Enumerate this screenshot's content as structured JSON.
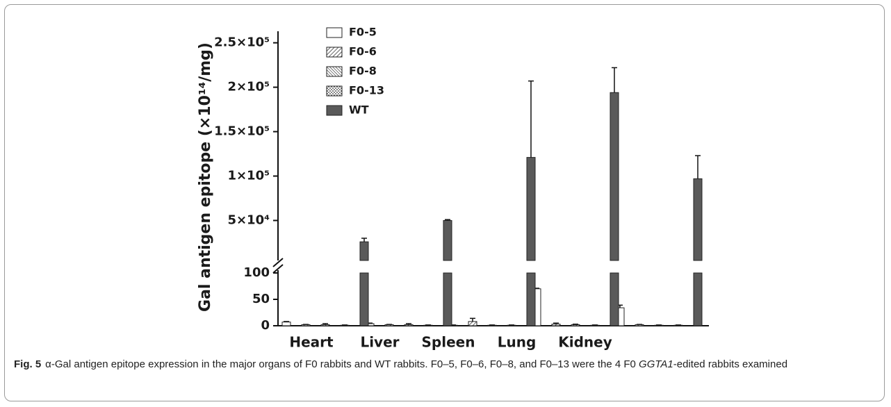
{
  "chart_data": {
    "type": "bar",
    "y_label": "Gal antigen epitope (×10¹⁴/mg)",
    "categories": [
      "Heart",
      "Liver",
      "Spleen",
      "Lung",
      "Kidney"
    ],
    "ylim_lower": [
      0,
      100
    ],
    "yticks_lower": [
      0,
      50,
      100
    ],
    "ylim_upper": [
      5000,
      263000
    ],
    "yticks_upper": [
      {
        "value": 50000,
        "label": "5×10⁴"
      },
      {
        "value": 100000,
        "label": "1×10⁵"
      },
      {
        "value": 150000,
        "label": "1.5×10⁵"
      },
      {
        "value": 200000,
        "label": "2×10⁵"
      },
      {
        "value": 250000,
        "label": "2.5×10⁵"
      }
    ],
    "series": [
      {
        "name": "F0-5",
        "fill": "white",
        "values": [
          7,
          4,
          1,
          70,
          34
        ],
        "errors": [
          1,
          1,
          0.5,
          1,
          5
        ]
      },
      {
        "name": "F0-6",
        "fill": "hatch-fwd",
        "values": [
          2,
          2,
          8,
          3,
          2
        ],
        "errors": [
          0.5,
          0.5,
          6,
          2,
          0.5
        ]
      },
      {
        "name": "F0-8",
        "fill": "hatch-back",
        "values": [
          2,
          2,
          1,
          2,
          1
        ],
        "errors": [
          2,
          2,
          0.5,
          1,
          0.5
        ]
      },
      {
        "name": "F0-13",
        "fill": "dots",
        "values": [
          1,
          1,
          1,
          1,
          1
        ],
        "errors": [
          0.5,
          0.5,
          0.5,
          0.5,
          0.5
        ]
      },
      {
        "name": "WT",
        "fill": "#5a5a5a",
        "axis": "upper",
        "values": [
          26000,
          50000,
          121000,
          194000,
          97000
        ],
        "errors": [
          4000,
          1000,
          86000,
          28000,
          26000
        ]
      }
    ]
  },
  "caption": {
    "label": "Fig. 5",
    "parts": [
      "α-Gal antigen epitope expression in the major organs of F0 rabbits and WT rabbits. F0–5, F0–6, F0–8, and F0–13 were the 4 F0 ",
      "GGTA1",
      "-edited rabbits examined"
    ]
  }
}
